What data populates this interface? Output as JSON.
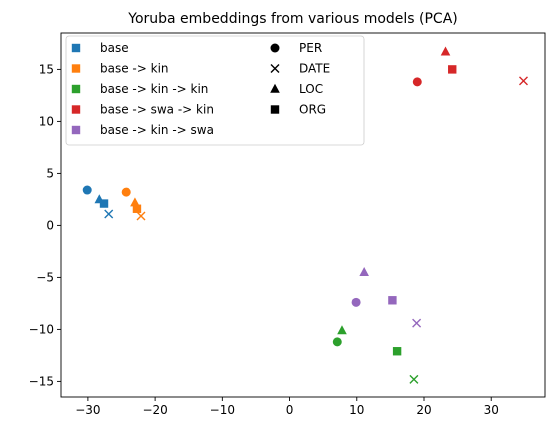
{
  "chart_data": {
    "type": "scatter",
    "title": "Yoruba embeddings from various models (PCA)",
    "xlabel": "",
    "ylabel": "",
    "xlim": [
      -34,
      38
    ],
    "ylim": [
      -16.5,
      18.5
    ],
    "xticks": [
      -30,
      -20,
      -10,
      0,
      10,
      20,
      30
    ],
    "yticks": [
      -15,
      -10,
      -5,
      0,
      5,
      10,
      15
    ],
    "xtick_labels": [
      "−30",
      "−20",
      "−10",
      "0",
      "10",
      "20",
      "30"
    ],
    "ytick_labels": [
      "−15",
      "−10",
      "−5",
      "0",
      "5",
      "10",
      "15"
    ],
    "grid": false,
    "legend_placement": "top-left",
    "models": [
      {
        "name": "base",
        "color": "#1f77b4"
      },
      {
        "name": "base -> kin",
        "color": "#ff7f0e"
      },
      {
        "name": "base -> kin -> kin",
        "color": "#2ca02c"
      },
      {
        "name": "base -> swa -> kin",
        "color": "#d62728"
      },
      {
        "name": "base -> kin -> swa",
        "color": "#9467bd"
      }
    ],
    "entity_types": [
      {
        "name": "PER",
        "marker": "circle"
      },
      {
        "name": "DATE",
        "marker": "x"
      },
      {
        "name": "LOC",
        "marker": "triangle"
      },
      {
        "name": "ORG",
        "marker": "square"
      }
    ],
    "points": [
      {
        "model": 0,
        "type": 0,
        "x": -30.1,
        "y": 3.4
      },
      {
        "model": 0,
        "type": 1,
        "x": -26.9,
        "y": 1.1
      },
      {
        "model": 0,
        "type": 2,
        "x": -28.3,
        "y": 2.5
      },
      {
        "model": 0,
        "type": 3,
        "x": -27.6,
        "y": 2.1
      },
      {
        "model": 1,
        "type": 0,
        "x": -24.3,
        "y": 3.2
      },
      {
        "model": 1,
        "type": 1,
        "x": -22.1,
        "y": 0.9
      },
      {
        "model": 1,
        "type": 2,
        "x": -23.0,
        "y": 2.2
      },
      {
        "model": 1,
        "type": 3,
        "x": -22.7,
        "y": 1.6
      },
      {
        "model": 2,
        "type": 0,
        "x": 7.1,
        "y": -11.2
      },
      {
        "model": 2,
        "type": 1,
        "x": 18.5,
        "y": -14.8
      },
      {
        "model": 2,
        "type": 2,
        "x": 7.8,
        "y": -10.1
      },
      {
        "model": 2,
        "type": 3,
        "x": 16.0,
        "y": -12.1
      },
      {
        "model": 3,
        "type": 0,
        "x": 19.0,
        "y": 13.8
      },
      {
        "model": 3,
        "type": 1,
        "x": 34.8,
        "y": 13.9
      },
      {
        "model": 3,
        "type": 2,
        "x": 23.2,
        "y": 16.7
      },
      {
        "model": 3,
        "type": 3,
        "x": 24.2,
        "y": 15.0
      },
      {
        "model": 4,
        "type": 0,
        "x": 9.9,
        "y": -7.4
      },
      {
        "model": 4,
        "type": 1,
        "x": 18.9,
        "y": -9.4
      },
      {
        "model": 4,
        "type": 2,
        "x": 11.1,
        "y": -4.5
      },
      {
        "model": 4,
        "type": 3,
        "x": 15.3,
        "y": -7.2
      }
    ]
  }
}
